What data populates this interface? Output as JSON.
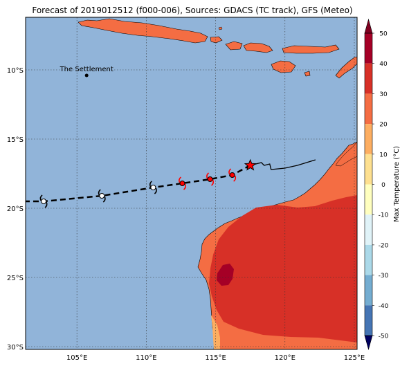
{
  "title": "Forecast of 2019012512 (f000-006), Sources: GDACS (TC track), GFS (Meteo)",
  "map": {
    "lon_range": [
      101.3,
      125.2
    ],
    "lat_range": [
      -30.2,
      -6.2
    ],
    "lon_ticks": [
      105,
      110,
      115,
      120,
      125
    ],
    "lat_ticks": [
      -10,
      -15,
      -20,
      -25,
      -30
    ],
    "lon_tick_labels": [
      "105°E",
      "110°E",
      "115°E",
      "120°E",
      "125°E"
    ],
    "lat_tick_labels": [
      "10°S",
      "15°S",
      "20°S",
      "25°S",
      "30°S"
    ],
    "gridlines": true,
    "ocean_color": "#91b4d9",
    "place_label": {
      "name": "The Settlement",
      "lon": 105.7,
      "lat": -10.4
    }
  },
  "chart_data": {
    "type": "map",
    "title": "Forecast of 2019012512 (f000-006), Sources: GDACS (TC track), GFS (Meteo)",
    "observed_track": [
      {
        "lon": 122.2,
        "lat": -16.5
      },
      {
        "lon": 120.9,
        "lat": -16.9
      },
      {
        "lon": 120.0,
        "lat": -17.1
      },
      {
        "lon": 119.0,
        "lat": -17.2
      },
      {
        "lon": 118.9,
        "lat": -16.8
      },
      {
        "lon": 118.5,
        "lat": -16.9
      },
      {
        "lon": 118.3,
        "lat": -16.7
      },
      {
        "lon": 117.5,
        "lat": -16.9
      }
    ],
    "current_position": {
      "lon": 117.5,
      "lat": -16.9
    },
    "forecast_track": [
      {
        "lon": 117.5,
        "lat": -16.9
      },
      {
        "lon": 116.2,
        "lat": -17.6
      },
      {
        "lon": 114.6,
        "lat": -17.9
      },
      {
        "lon": 112.6,
        "lat": -18.2
      },
      {
        "lon": 110.5,
        "lat": -18.5
      },
      {
        "lon": 106.8,
        "lat": -19.1
      },
      {
        "lon": 102.6,
        "lat": -19.5
      },
      {
        "lon": 101.3,
        "lat": -19.5
      }
    ],
    "storm_symbols": [
      {
        "lon": 116.2,
        "lat": -17.6,
        "color": "#ff0000"
      },
      {
        "lon": 114.6,
        "lat": -17.9,
        "color": "#ff0000"
      },
      {
        "lon": 112.6,
        "lat": -18.2,
        "color": "#ff0000"
      },
      {
        "lon": 110.5,
        "lat": -18.5,
        "color": "#ffffff"
      },
      {
        "lon": 106.8,
        "lat": -19.1,
        "color": "#ffffff"
      },
      {
        "lon": 102.6,
        "lat": -19.5,
        "color": "#ffffff"
      }
    ],
    "colorbar": {
      "label": "Max Temperature (°C)",
      "ticks": [
        50,
        40,
        30,
        20,
        10,
        0,
        -10,
        -20,
        -30,
        -40,
        -50
      ],
      "levels": [
        {
          "from": 40,
          "to": 50,
          "color": "#a50026"
        },
        {
          "from": 30,
          "to": 40,
          "color": "#d73027"
        },
        {
          "from": 20,
          "to": 30,
          "color": "#f46d43"
        },
        {
          "from": 10,
          "to": 20,
          "color": "#fdae61"
        },
        {
          "from": 0,
          "to": 10,
          "color": "#fee090"
        },
        {
          "from": -10,
          "to": 0,
          "color": "#ffffbf"
        },
        {
          "from": -20,
          "to": -10,
          "color": "#e0f3f8"
        },
        {
          "from": -30,
          "to": -20,
          "color": "#abd9e9"
        },
        {
          "from": -40,
          "to": -30,
          "color": "#74add1"
        },
        {
          "from": -50,
          "to": -40,
          "color": "#4575b4"
        }
      ],
      "extend_top_color": "#800020",
      "extend_bottom_color": "#000060"
    }
  }
}
